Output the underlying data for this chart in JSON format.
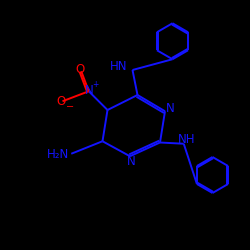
{
  "background_color": "#000000",
  "bond_color": "#1414ff",
  "N_color": "#1414ff",
  "O_color": "#ff0000",
  "figsize": [
    2.5,
    2.5
  ],
  "dpi": 100,
  "xlim": [
    0,
    10
  ],
  "ylim": [
    0,
    10
  ]
}
